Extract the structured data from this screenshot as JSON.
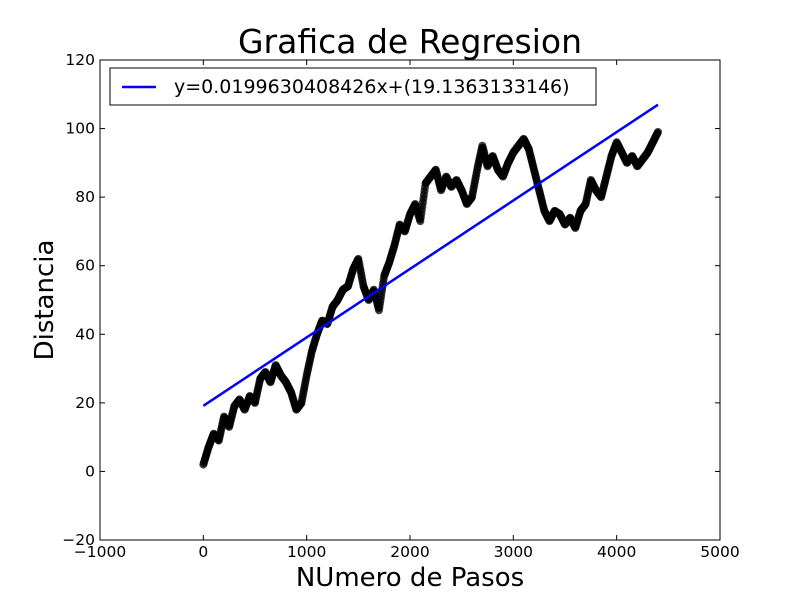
{
  "chart_data": {
    "type": "scatter",
    "title": "Grafica de Regresion",
    "xlabel": "NUmero de Pasos",
    "ylabel": "Distancia",
    "xlim": [
      -1000,
      5000
    ],
    "ylim": [
      -20,
      120
    ],
    "x_ticks": [
      -1000,
      0,
      1000,
      2000,
      3000,
      4000,
      5000
    ],
    "y_ticks": [
      -20,
      0,
      20,
      40,
      60,
      80,
      100,
      120
    ],
    "x_tick_labels": [
      "−1000",
      "0",
      "1000",
      "2000",
      "3000",
      "4000",
      "5000"
    ],
    "y_tick_labels": [
      "−20",
      "0",
      "20",
      "40",
      "60",
      "80",
      "100",
      "120"
    ],
    "grid": false,
    "legend_position": "top-left",
    "series": [
      {
        "type": "scatter",
        "color": "#000000",
        "x": [
          0,
          50,
          100,
          150,
          200,
          250,
          300,
          350,
          400,
          450,
          500,
          550,
          600,
          650,
          700,
          750,
          800,
          850,
          900,
          950,
          1000,
          1050,
          1100,
          1150,
          1200,
          1250,
          1300,
          1350,
          1400,
          1450,
          1500,
          1550,
          1600,
          1650,
          1700,
          1750,
          1800,
          1850,
          1900,
          1950,
          2000,
          2050,
          2100,
          2150,
          2200,
          2250,
          2300,
          2350,
          2400,
          2450,
          2500,
          2550,
          2600,
          2650,
          2700,
          2750,
          2800,
          2850,
          2900,
          2950,
          3000,
          3050,
          3100,
          3150,
          3200,
          3250,
          3300,
          3350,
          3400,
          3450,
          3500,
          3550,
          3600,
          3650,
          3700,
          3750,
          3800,
          3850,
          3900,
          3950,
          4000,
          4050,
          4100,
          4150,
          4200,
          4250,
          4300,
          4350,
          4400
        ],
        "y": [
          2,
          7,
          11,
          9,
          16,
          13,
          19,
          21,
          18,
          22,
          20,
          27,
          29,
          26,
          31,
          28,
          26,
          23,
          18,
          20,
          28,
          35,
          40,
          44,
          43,
          48,
          50,
          53,
          54,
          59,
          62,
          54,
          50,
          53,
          47,
          57,
          61,
          66,
          72,
          70,
          75,
          78,
          73,
          84,
          86,
          88,
          82,
          86,
          83,
          85,
          82,
          78,
          80,
          88,
          95,
          89,
          92,
          88,
          86,
          90,
          93,
          95,
          97,
          94,
          88,
          82,
          76,
          73,
          76,
          75,
          72,
          74,
          71,
          76,
          78,
          85,
          82,
          80,
          86,
          92,
          96,
          93,
          90,
          92,
          89,
          91,
          93,
          96,
          99
        ]
      },
      {
        "type": "line",
        "name": "y=0.0199630408426x+(19.1363133146)",
        "color": "#0000ff",
        "slope": 0.0199630408426,
        "intercept": 19.1363133146,
        "x_range": [
          0,
          4400
        ]
      }
    ]
  }
}
